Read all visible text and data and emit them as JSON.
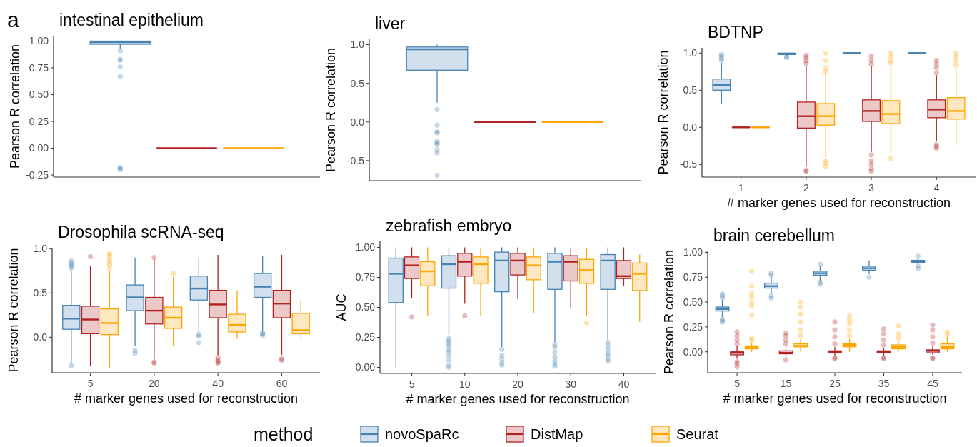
{
  "chart_data": [
    {
      "type": "box",
      "title": "intestinal epithelium",
      "ylabel": "Pearson R correlation",
      "annotations": [
        "a"
      ],
      "categories": [
        null
      ],
      "tick_labels": "y",
      "ylim": [
        -0.27,
        1.05
      ],
      "yticks": [
        {
          "value": -0.25,
          "label": "-0.25"
        },
        {
          "value": 0,
          "label": "0.00"
        },
        {
          "value": 0.25,
          "label": "0.25"
        },
        {
          "value": 0.5,
          "label": "0.50"
        },
        {
          "value": 0.75,
          "label": "0.75"
        },
        {
          "value": 1,
          "label": "1.00"
        }
      ],
      "series": [
        {
          "color": "#4682b4",
          "boxes": [
            {
              "low": 0.93,
              "q1": 0.97,
              "median": 0.99,
              "q3": 1.0,
              "high": 1.0,
              "outliers": [
                0.91,
                0.83,
                0.82,
                0.76,
                0.67,
                -0.18,
                -0.19,
                -0.2
              ]
            }
          ]
        },
        {
          "color": "#b22222",
          "boxes": [
            {
              "low": 0,
              "q1": 0,
              "median": 0,
              "q3": 0,
              "high": 0
            }
          ]
        },
        {
          "color": "#ffa500",
          "boxes": [
            {
              "low": 0,
              "q1": 0,
              "median": 0,
              "q3": 0,
              "high": 0
            }
          ]
        }
      ]
    },
    {
      "type": "box",
      "title": "liver",
      "ylabel": "Pearson R correlation",
      "categories": [
        null
      ],
      "tick_labels": "y",
      "ylim": [
        -0.76,
        1.07
      ],
      "yticks": [
        {
          "value": -0.5,
          "label": "-0.5"
        },
        {
          "value": 0,
          "label": "0.0"
        },
        {
          "value": 0.5,
          "label": "0.5"
        },
        {
          "value": 1,
          "label": "1.0"
        }
      ],
      "series": [
        {
          "color": "#4682b4",
          "boxes": [
            {
              "low": 0.25,
              "q1": 0.67,
              "median": 0.94,
              "q3": 0.97,
              "high": 1.0,
              "outliers": [
                0.16,
                -0.04,
                -0.13,
                -0.14,
                -0.25,
                -0.27,
                -0.29,
                -0.36,
                -0.4,
                -0.69
              ]
            }
          ]
        },
        {
          "color": "#b22222",
          "boxes": [
            {
              "low": 0,
              "q1": 0,
              "median": 0,
              "q3": 0,
              "high": 0
            }
          ]
        },
        {
          "color": "#ffa500",
          "boxes": [
            {
              "low": 0,
              "q1": 0,
              "median": 0,
              "q3": 0,
              "high": 0
            }
          ]
        }
      ]
    },
    {
      "type": "box",
      "title": "BDTNP",
      "ylabel": "Pearson R correlation",
      "xlabel": "# marker genes used for reconstruction",
      "categories": [
        "1",
        "2",
        "3",
        "4"
      ],
      "ylim": [
        -0.67,
        1.07
      ],
      "yticks": [
        {
          "value": -0.5,
          "label": "-0.5"
        },
        {
          "value": 0,
          "label": "0.0"
        },
        {
          "value": 0.5,
          "label": "0.5"
        },
        {
          "value": 1,
          "label": "1.0"
        }
      ],
      "series": [
        {
          "color": "#4682b4",
          "boxes": [
            {
              "low": 0.31,
              "q1": 0.5,
              "median": 0.57,
              "q3": 0.65,
              "high": 0.87,
              "outliers": [
                0.9,
                0.93,
                0.96,
                0.98
              ]
            },
            {
              "low": 0.96,
              "q1": 0.98,
              "median": 0.99,
              "q3": 1.0,
              "high": 1.0,
              "outliers": [
                0.95,
                0.94
              ]
            },
            {
              "low": 1.0,
              "q1": 1.0,
              "median": 1.0,
              "q3": 1.0,
              "high": 1.0
            },
            {
              "low": 1.0,
              "q1": 1.0,
              "median": 1.0,
              "q3": 1.0,
              "high": 1.0
            }
          ]
        },
        {
          "color": "#b22222",
          "boxes": [
            {
              "low": 0,
              "q1": 0,
              "median": 0,
              "q3": 0,
              "high": 0
            },
            {
              "low": -0.53,
              "q1": -0.01,
              "median": 0.15,
              "q3": 0.34,
              "high": 0.82,
              "outliers": [
                0.86,
                0.9,
                0.94,
                0.97,
                -0.58,
                -0.59
              ]
            },
            {
              "low": -0.33,
              "q1": 0.08,
              "median": 0.22,
              "q3": 0.37,
              "high": 0.82,
              "outliers": [
                0.85,
                0.9,
                0.96,
                -0.37,
                -0.45,
                -0.5,
                -0.56,
                -0.59
              ]
            },
            {
              "low": -0.19,
              "q1": 0.13,
              "median": 0.24,
              "q3": 0.37,
              "high": 0.7,
              "outliers": [
                0.73,
                0.8,
                0.85,
                0.9,
                -0.23,
                -0.26,
                -0.28
              ]
            }
          ]
        },
        {
          "color": "#ffa500",
          "boxes": [
            {
              "low": 0,
              "q1": 0,
              "median": 0,
              "q3": 0,
              "high": 0
            },
            {
              "low": -0.4,
              "q1": 0.03,
              "median": 0.15,
              "q3": 0.32,
              "high": 0.73,
              "outliers": [
                0.75,
                0.8,
                0.9,
                1.0,
                -0.45,
                -0.48,
                -0.53
              ]
            },
            {
              "low": -0.34,
              "q1": 0.05,
              "median": 0.18,
              "q3": 0.36,
              "high": 0.84,
              "outliers": [
                0.87,
                0.9,
                0.95,
                1.0,
                -0.42
              ]
            },
            {
              "low": -0.24,
              "q1": 0.11,
              "median": 0.22,
              "q3": 0.4,
              "high": 0.8,
              "outliers": [
                0.84,
                0.9,
                0.95,
                1.0
              ]
            }
          ]
        }
      ]
    },
    {
      "type": "box",
      "title": "Drosophila scRNA-seq",
      "ylabel": "Pearson R correlation",
      "xlabel": "# marker genes used for reconstruction",
      "categories": [
        "5",
        "20",
        "40",
        "60"
      ],
      "ylim": [
        -0.4,
        1.01
      ],
      "yticks": [
        {
          "value": 0,
          "label": "0.0"
        },
        {
          "value": 0.5,
          "label": "0.5"
        },
        {
          "value": 1,
          "label": "1.0"
        }
      ],
      "series": [
        {
          "color": "#4682b4",
          "boxes": [
            {
              "low": -0.3,
              "q1": 0.09,
              "median": 0.21,
              "q3": 0.36,
              "high": 0.75,
              "outliers": [
                0.78,
                0.8,
                0.82,
                0.84,
                0.86,
                -0.32
              ]
            },
            {
              "low": -0.1,
              "q1": 0.3,
              "median": 0.45,
              "q3": 0.59,
              "high": 0.9,
              "outliers": [
                -0.15,
                -0.18
              ]
            },
            {
              "low": 0.05,
              "q1": 0.42,
              "median": 0.55,
              "q3": 0.69,
              "high": 0.9,
              "outliers": [
                0.03,
                0.01,
                -0.06
              ]
            },
            {
              "low": 0.07,
              "q1": 0.45,
              "median": 0.57,
              "q3": 0.72,
              "high": 0.92,
              "outliers": [
                0.05,
                0.04,
                0.02
              ]
            }
          ]
        },
        {
          "color": "#b22222",
          "boxes": [
            {
              "low": -0.32,
              "q1": 0.04,
              "median": 0.2,
              "q3": 0.35,
              "high": 0.8,
              "outliers": [
                0.91
              ]
            },
            {
              "low": -0.25,
              "q1": 0.15,
              "median": 0.3,
              "q3": 0.45,
              "high": 0.88,
              "outliers": [
                0.9,
                -0.28,
                -0.29
              ]
            },
            {
              "low": -0.2,
              "q1": 0.22,
              "median": 0.37,
              "q3": 0.53,
              "high": 0.93,
              "outliers": [
                -0.23,
                -0.26,
                -0.28,
                -0.29
              ]
            },
            {
              "low": -0.2,
              "q1": 0.22,
              "median": 0.38,
              "q3": 0.53,
              "high": 0.93,
              "outliers": [
                -0.24,
                -0.26
              ]
            }
          ]
        },
        {
          "color": "#ffa500",
          "boxes": [
            {
              "low": -0.34,
              "q1": 0.03,
              "median": 0.16,
              "q3": 0.32,
              "high": 0.75,
              "outliers": [
                0.78,
                0.82,
                0.85,
                0.88,
                0.92,
                0.94
              ]
            },
            {
              "low": -0.1,
              "q1": 0.1,
              "median": 0.22,
              "q3": 0.34,
              "high": 0.68,
              "outliers": [
                0.72
              ]
            },
            {
              "low": -0.02,
              "q1": 0.06,
              "median": 0.14,
              "q3": 0.26,
              "high": 0.53
            },
            {
              "low": -0.02,
              "q1": 0.04,
              "median": 0.08,
              "q3": 0.27,
              "high": 0.42
            }
          ]
        }
      ]
    },
    {
      "type": "box",
      "title": "zebrafish embryo",
      "ylabel": "AUC",
      "xlabel": "# marker genes used for reconstruction",
      "legend": "bottom",
      "legend_title": "method",
      "categories": [
        "5",
        "10",
        "20",
        "30",
        "40"
      ],
      "ylim": [
        -0.05,
        1.05
      ],
      "yticks": [
        {
          "value": 0,
          "label": "0.00"
        },
        {
          "value": 0.25,
          "label": "0.25"
        },
        {
          "value": 0.5,
          "label": "0.50"
        },
        {
          "value": 0.75,
          "label": "0.75"
        },
        {
          "value": 1,
          "label": "1.00"
        }
      ],
      "series": [
        {
          "name": "novoSpaRc",
          "color": "#4682b4",
          "boxes": [
            {
              "low": 0,
              "q1": 0.54,
              "median": 0.78,
              "q3": 0.91,
              "high": 1
            },
            {
              "low": 0.27,
              "q1": 0.66,
              "median": 0.86,
              "q3": 0.93,
              "high": 1,
              "outliers": [
                0.24,
                0.22,
                0.2,
                0.18,
                0.15,
                0.13,
                0.1,
                0.06,
                0.02,
                0
              ]
            },
            {
              "low": 0.17,
              "q1": 0.63,
              "median": 0.89,
              "q3": 0.96,
              "high": 1,
              "outliers": [
                0.15,
                0.1,
                0.07,
                0.04,
                0.02
              ]
            },
            {
              "low": 0.21,
              "q1": 0.65,
              "median": 0.88,
              "q3": 0.95,
              "high": 1,
              "outliers": [
                0.19,
                0.17,
                0.13,
                0.09,
                0.06,
                0.03,
                0.01
              ]
            },
            {
              "low": 0.23,
              "q1": 0.65,
              "median": 0.89,
              "q3": 0.94,
              "high": 1,
              "outliers": [
                0.21,
                0.18,
                0.15,
                0.12,
                0.1,
                0.07,
                0.05
              ]
            }
          ]
        },
        {
          "name": "DistMap",
          "color": "#b22222",
          "boxes": [
            {
              "low": 0.58,
              "q1": 0.74,
              "median": 0.85,
              "q3": 0.92,
              "high": 1,
              "outliers": [
                0.42
              ]
            },
            {
              "low": 0.53,
              "q1": 0.76,
              "median": 0.88,
              "q3": 0.95,
              "high": 1,
              "outliers": [
                0.43
              ]
            },
            {
              "low": 0.57,
              "q1": 0.77,
              "median": 0.89,
              "q3": 0.95,
              "high": 1
            },
            {
              "low": 0.49,
              "q1": 0.72,
              "median": 0.88,
              "q3": 0.93,
              "high": 1
            },
            {
              "low": 0.68,
              "q1": 0.74,
              "median": 0.76,
              "q3": 0.89,
              "high": 1
            }
          ]
        },
        {
          "name": "Seurat",
          "color": "#ffa500",
          "boxes": [
            {
              "low": 0.43,
              "q1": 0.68,
              "median": 0.8,
              "q3": 0.88,
              "high": 1
            },
            {
              "low": 0.43,
              "q1": 0.7,
              "median": 0.86,
              "q3": 0.92,
              "high": 1
            },
            {
              "low": 0.45,
              "q1": 0.73,
              "median": 0.85,
              "q3": 0.92,
              "high": 1
            },
            {
              "low": 0.43,
              "q1": 0.7,
              "median": 0.81,
              "q3": 0.9,
              "high": 0.99,
              "outliers": [
                0.37
              ]
            },
            {
              "low": 0.38,
              "q1": 0.64,
              "median": 0.78,
              "q3": 0.87,
              "high": 0.94
            }
          ]
        }
      ]
    },
    {
      "type": "box",
      "title": "brain cerebellum",
      "ylabel": "Pearson R correlation",
      "xlabel": "# marker genes used for reconstruction",
      "categories": [
        "5",
        "15",
        "25",
        "35",
        "45"
      ],
      "ylim": [
        -0.21,
        1.01
      ],
      "yticks": [
        {
          "value": 0,
          "label": "0.00"
        },
        {
          "value": 0.25,
          "label": "0.25"
        },
        {
          "value": 0.5,
          "label": "0.50"
        },
        {
          "value": 0.75,
          "label": "0.75"
        },
        {
          "value": 1,
          "label": "1.00"
        }
      ],
      "series": [
        {
          "color": "#4682b4",
          "boxes": [
            {
              "low": 0.35,
              "q1": 0.41,
              "median": 0.43,
              "q3": 0.45,
              "high": 0.52,
              "outliers": [
                0.54,
                0.56,
                0.58,
                0.33,
                0.31,
                0.3
              ]
            },
            {
              "low": 0.58,
              "q1": 0.64,
              "median": 0.66,
              "q3": 0.69,
              "high": 0.75,
              "outliers": [
                0.77,
                0.79,
                0.56,
                0.54
              ]
            },
            {
              "low": 0.71,
              "q1": 0.77,
              "median": 0.79,
              "q3": 0.81,
              "high": 0.86,
              "outliers": [
                0.88,
                0.7,
                0.68
              ]
            },
            {
              "low": 0.78,
              "q1": 0.82,
              "median": 0.84,
              "q3": 0.86,
              "high": 0.92,
              "outliers": [
                0.75
              ]
            },
            {
              "low": 0.88,
              "q1": 0.9,
              "median": 0.91,
              "q3": 0.92,
              "high": 0.94,
              "outliers": [
                0.96,
                0.86,
                0.84
              ]
            }
          ]
        },
        {
          "color": "#b22222",
          "boxes": [
            {
              "low": -0.07,
              "q1": -0.03,
              "median": -0.01,
              "q3": 0,
              "high": 0.06,
              "outliers": [
                0.08,
                0.12,
                0.16,
                0.2,
                -0.1,
                -0.12,
                -0.15
              ]
            },
            {
              "low": -0.05,
              "q1": -0.02,
              "median": -0.01,
              "q3": 0.01,
              "high": 0.05,
              "outliers": [
                0.08,
                0.12,
                0.16,
                0.19,
                -0.08
              ]
            },
            {
              "low": -0.04,
              "q1": -0.01,
              "median": 0,
              "q3": 0.01,
              "high": 0.05,
              "outliers": [
                0.08,
                0.15,
                0.22,
                0.3,
                -0.06,
                -0.07
              ]
            },
            {
              "low": -0.04,
              "q1": -0.01,
              "median": 0,
              "q3": 0.01,
              "high": 0.04,
              "outliers": [
                0.07,
                0.12,
                0.18,
                0.23,
                -0.06,
                -0.07
              ]
            },
            {
              "low": -0.03,
              "q1": -0.01,
              "median": 0.01,
              "q3": 0.02,
              "high": 0.06,
              "outliers": [
                0.09,
                0.15,
                0.22,
                0.27,
                -0.06,
                -0.07
              ]
            }
          ]
        },
        {
          "color": "#ffa500",
          "boxes": [
            {
              "low": 0,
              "q1": 0.03,
              "median": 0.05,
              "q3": 0.06,
              "high": 0.09,
              "outliers": [
                0.11,
                0.14,
                0.37,
                0.46,
                0.5,
                0.55,
                0.59,
                0.66,
                0.81
              ]
            },
            {
              "low": 0,
              "q1": 0.05,
              "median": 0.06,
              "q3": 0.08,
              "high": 0.13,
              "outliers": [
                0.16,
                0.22,
                0.3,
                0.38,
                0.45,
                0.5
              ]
            },
            {
              "low": 0,
              "q1": 0.05,
              "median": 0.07,
              "q3": 0.08,
              "high": 0.13,
              "outliers": [
                0.16,
                0.22,
                0.28,
                0.32,
                0.36
              ]
            },
            {
              "low": 0,
              "q1": 0.03,
              "median": 0.05,
              "q3": 0.07,
              "high": 0.11,
              "outliers": [
                0.14,
                0.18,
                0.26
              ]
            },
            {
              "low": 0,
              "q1": 0.03,
              "median": 0.05,
              "q3": 0.08,
              "high": 0.15,
              "outliers": [
                0.17,
                0.2
              ]
            }
          ]
        }
      ]
    }
  ]
}
